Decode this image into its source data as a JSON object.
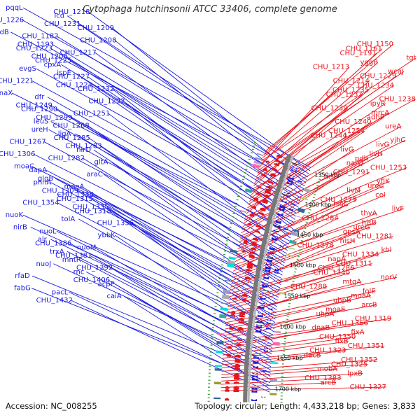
{
  "title": "Cytophaga hutchinsonii ATCC 33406, complete genome",
  "footer": {
    "accession": "Accession: NC_008255",
    "summary": "Topology: circular; Length: 4,433,218 bp; Genes: 3,833"
  },
  "colors": {
    "forward_gene": "#e8141c",
    "reverse_gene": "#1a1ae0",
    "backbone": "#777777",
    "tick": "#229922"
  },
  "scale_labels": [
    "1350 kbp",
    "1400 kbp",
    "1450 kbp",
    "1500 kbp",
    "1550 kbp",
    "1600 kbp",
    "1650 kbp",
    "1700 kbp"
  ],
  "left_labels": [
    "pqqL",
    "CHU_1218",
    "icd",
    "CHU_1226",
    "CHU_1231",
    "CHU_1209",
    "gidB",
    "CHU_1182",
    "CHU_1208",
    "CHU_1193",
    "CHU_1223",
    "CHU_1217",
    "CHU_1206",
    "CHU_1225",
    "cpxA",
    "evgS",
    "ispE",
    "CHU_1227",
    "CHU_1221",
    "CHU_1224",
    "CHU_1232",
    "dnaX",
    "dfr",
    "CHU_1292",
    "CHU_1249",
    "CHU_1290",
    "CHU_1251",
    "CHU_1299",
    "leuS",
    "CHU_1268",
    "ureH",
    "ligA",
    "CHU_1285",
    "CHU_1267",
    "CHU_1283",
    "nirD",
    "CHU_1306",
    "CHU_1282",
    "gltA",
    "moaC",
    "dapA",
    "araC",
    "glgB",
    "phnA",
    "moeA",
    "CHU_1309",
    "CHU_1338",
    "CHU_1315",
    "CHU_1354",
    "CHU_1335",
    "CHU_1318",
    "nuoK",
    "tolA",
    "CHU_1336",
    "nirB",
    "nuoL",
    "ybbK",
    "alr",
    "CHU_1386",
    "nuoM",
    "trxA",
    "CHU_1381",
    "mntR",
    "nuoJ",
    "CHU_1392",
    "rnc",
    "rfaD",
    "CHU_1406",
    "acpP",
    "fabG",
    "pacL",
    "caiA",
    "CHU_1432"
  ],
  "right_labels": [
    "CHU_1150",
    "CHU_1161",
    "CHU_1191",
    "tgt",
    "yggB",
    "CHU_1213",
    "wcaJ",
    "CHU_1229",
    "CHU_1214",
    "CHU_1234",
    "CHU_1235",
    "CHU_1237",
    "CHU_1238",
    "ipyR",
    "CHU_1239",
    "mrcA",
    "adhP",
    "CHU_1240",
    "ureA",
    "CHU_1254",
    "CHU_1244",
    "yjhC",
    "livG",
    "livG",
    "livH",
    "pdh",
    "narQ",
    "CHU_1253",
    "CHU_1291",
    "hisF",
    "yfiK",
    "ureC",
    "livM",
    "cel",
    "CHU_1279",
    "hisC",
    "livF",
    "thyA",
    "CHU_1284",
    "hisB",
    "ureG",
    "gpsA",
    "CHU_1281",
    "hisH",
    "CHU_1278",
    "kbl",
    "CHU_1334",
    "napA",
    "CHU_1311",
    "CHU_1286",
    "CHU_1340",
    "norV",
    "mtgA",
    "CHU_1288",
    "folE",
    "moaA",
    "uhpB",
    "arcB",
    "moaE",
    "uhpA",
    "CHU_1319",
    "CHU_1366",
    "dnaB",
    "fixA",
    "CHU_1350",
    "fixB",
    "CHU_1351",
    "CHU_1323",
    "dacB",
    "CHU_1352",
    "CHU_1325",
    "mobA",
    "lpxB",
    "CHU_1383",
    "arcB",
    "CHU_1327"
  ]
}
